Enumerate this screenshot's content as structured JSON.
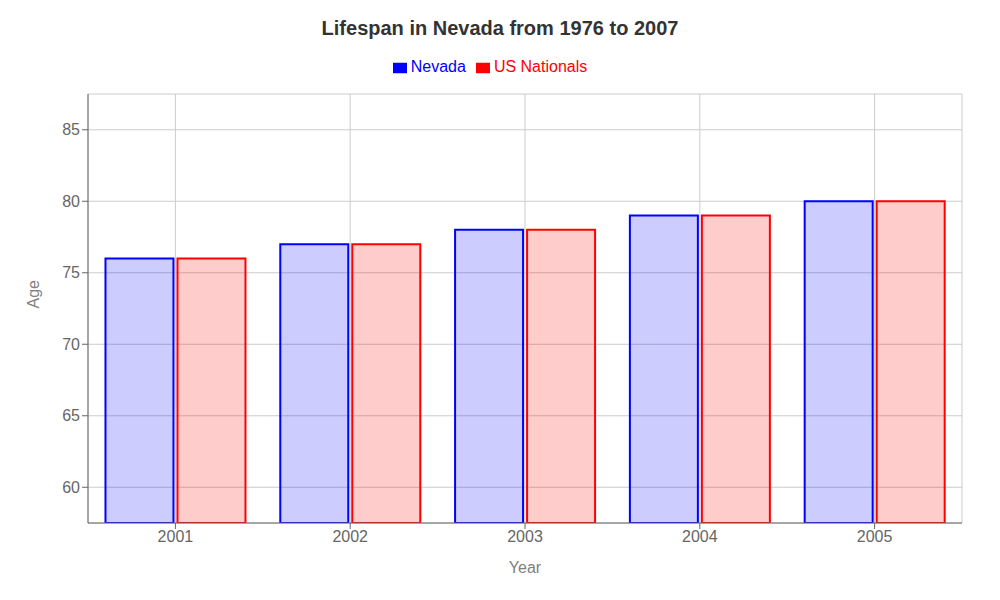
{
  "chart_data": {
    "type": "bar",
    "title": "Lifespan in Nevada from 1976 to 2007",
    "xlabel": "Year",
    "ylabel": "Age",
    "categories": [
      "2001",
      "2002",
      "2003",
      "2004",
      "2005"
    ],
    "series": [
      {
        "name": "Nevada",
        "color": "#0000ff",
        "values": [
          76,
          77,
          78,
          79,
          80
        ]
      },
      {
        "name": "US Nationals",
        "color": "#ff0000",
        "values": [
          76,
          77,
          78,
          79,
          80
        ]
      }
    ],
    "ylim": [
      57.5,
      87.5
    ],
    "yticks": [
      60,
      65,
      70,
      75,
      80,
      85
    ],
    "grid": true,
    "legend": "top"
  }
}
